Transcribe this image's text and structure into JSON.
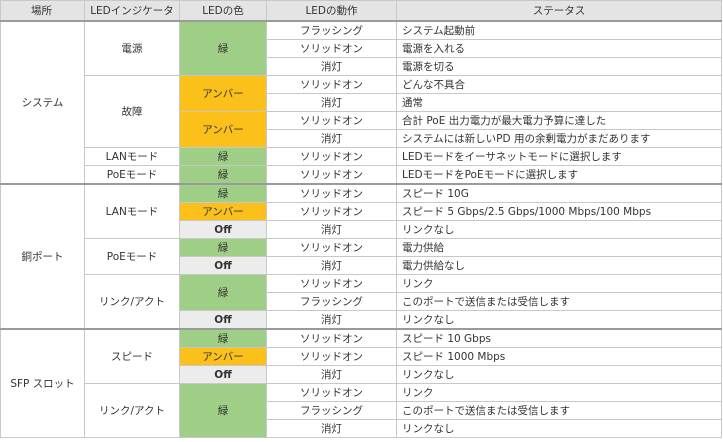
{
  "headers": {
    "location": "場所",
    "indicator": "LEDインジケータ",
    "color": "LEDの色",
    "action": "LEDの動作",
    "status": "ステータス"
  },
  "colors": {
    "green_bg": "#9fcf86",
    "amber_bg": "#fcc01a",
    "off_bg": "#ececec",
    "header_bg": "#e4e4e4"
  },
  "system": {
    "location": "システム",
    "power": {
      "indicator": "電源",
      "color": "緑",
      "rows": [
        {
          "action": "フラッシング",
          "status": "システム起動前"
        },
        {
          "action": "ソリッドオン",
          "status": "電源を入れる"
        },
        {
          "action": "消灯",
          "status": "電源を切る"
        }
      ]
    },
    "fault": {
      "indicator": "故障",
      "color_1": "アンバー",
      "color_2": "アンバー",
      "rows": [
        {
          "action": "ソリッドオン",
          "status": "どんな不具合"
        },
        {
          "action": "消灯",
          "status": "通常"
        },
        {
          "action": "ソリッドオン",
          "status": "合計 PoE 出力電力が最大電力予算に達した"
        },
        {
          "action": "消灯",
          "status": "システムには新しいPD 用の余剰電力がまだあります"
        }
      ]
    },
    "lan_mode": {
      "indicator": "LANモード",
      "color": "緑",
      "action": "ソリッドオン",
      "status": "LEDモードをイーサネットモードに選択します"
    },
    "poe_mode": {
      "indicator": "PoEモード",
      "color": "緑",
      "action": "ソリッドオン",
      "status": "LEDモードをPoEモードに選択します"
    }
  },
  "copper": {
    "location": "銅ポート",
    "lan_mode": {
      "indicator": "LANモード",
      "rows": [
        {
          "color": "緑",
          "action": "ソリッドオン",
          "status": "スピード 10G"
        },
        {
          "color": "アンバー",
          "action": "ソリッドオン",
          "status": "スピード 5 Gbps/2.5 Gbps/1000 Mbps/100 Mbps"
        },
        {
          "color": "Off",
          "action": "消灯",
          "status": "リンクなし"
        }
      ]
    },
    "poe_mode": {
      "indicator": "PoEモード",
      "rows": [
        {
          "color": "緑",
          "action": "ソリッドオン",
          "status": "電力供給"
        },
        {
          "color": "Off",
          "action": "消灯",
          "status": "電力供給なし"
        }
      ]
    },
    "link_act": {
      "indicator": "リンク/アクト",
      "color": "緑",
      "color_off": "Off",
      "rows": [
        {
          "action": "ソリッドオン",
          "status": "リンク"
        },
        {
          "action": "フラッシング",
          "status": "このポートで送信または受信します"
        },
        {
          "action": "消灯",
          "status": "リンクなし"
        }
      ]
    }
  },
  "sfp": {
    "location": "SFP スロット",
    "speed": {
      "indicator": "スピード",
      "rows": [
        {
          "color": "緑",
          "action": "ソリッドオン",
          "status": "スピード 10 Gbps"
        },
        {
          "color": "アンバー",
          "action": "ソリッドオン",
          "status": "スピード 1000 Mbps"
        },
        {
          "color": "Off",
          "action": "消灯",
          "status": "リンクなし"
        }
      ]
    },
    "link_act": {
      "indicator": "リンク/アクト",
      "color": "緑",
      "rows": [
        {
          "action": "ソリッドオン",
          "status": "リンク"
        },
        {
          "action": "フラッシング",
          "status": "このポートで送信または受信します"
        },
        {
          "action": "消灯",
          "status": "リンクなし"
        }
      ]
    }
  }
}
